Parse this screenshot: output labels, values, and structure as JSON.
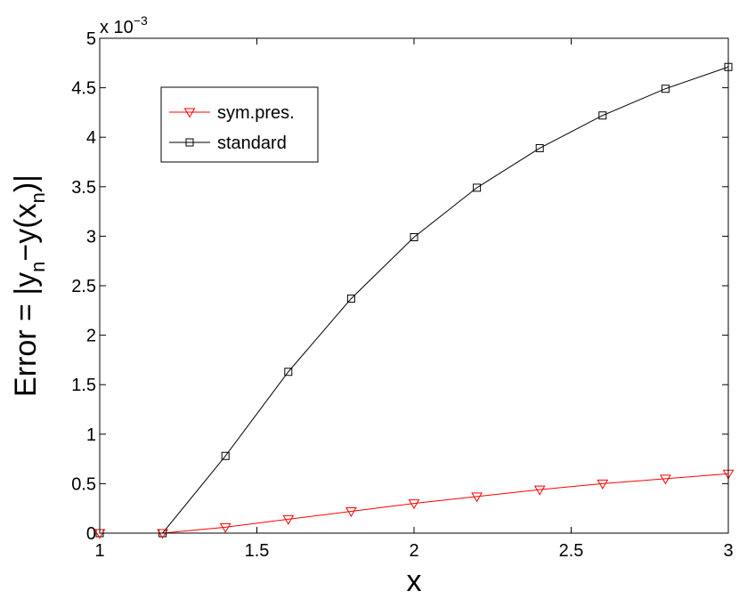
{
  "chart_data": {
    "type": "line",
    "xlabel": "x",
    "ylabel": {
      "base": "Error = |y",
      "sub1": "n",
      "mid": "−y(x",
      "sub2": "n",
      "end": ")|"
    },
    "exponent_label": {
      "prefix": "x 10",
      "exponent": "−3"
    },
    "xlim": [
      1,
      3
    ],
    "ylim": [
      0,
      5
    ],
    "xticks": [
      1,
      1.5,
      2,
      2.5,
      3
    ],
    "xtick_labels": [
      "1",
      "1.5",
      "2",
      "2.5",
      "3"
    ],
    "yticks": [
      0,
      0.5,
      1,
      1.5,
      2,
      2.5,
      3,
      3.5,
      4,
      4.5,
      5
    ],
    "ytick_labels": [
      "0",
      "0.5",
      "1",
      "1.5",
      "2",
      "2.5",
      "3",
      "3.5",
      "4",
      "4.5",
      "5"
    ],
    "grid": false,
    "legend_position": "top-left",
    "x": [
      1.0,
      1.2,
      1.4,
      1.6,
      1.8,
      2.0,
      2.2,
      2.4,
      2.6,
      2.8,
      3.0
    ],
    "series": [
      {
        "name": "sym.pres.",
        "color": "#ff0000",
        "marker": "triangle-down",
        "values": [
          0,
          0,
          0.06,
          0.14,
          0.22,
          0.3,
          0.37,
          0.44,
          0.5,
          0.55,
          0.6
        ]
      },
      {
        "name": "standard",
        "color": "#000000",
        "marker": "square",
        "values": [
          0,
          0,
          0.78,
          1.63,
          2.37,
          2.99,
          3.49,
          3.89,
          4.22,
          4.49,
          4.71
        ]
      }
    ]
  }
}
